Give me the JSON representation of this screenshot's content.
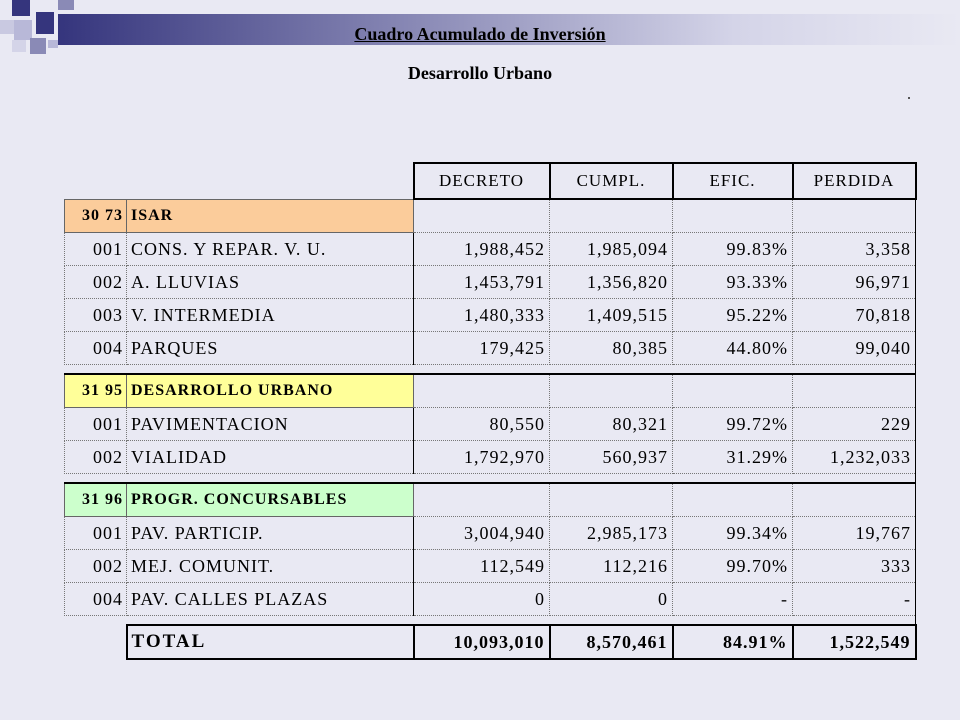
{
  "header": {
    "title": "Cuadro Acumulado de Inversión",
    "subtitle": "Desarrollo Urbano"
  },
  "columns": [
    "DECRETO",
    "CUMPL.",
    "EFIC.",
    "PERDIDA"
  ],
  "sections": [
    {
      "code": "30 73",
      "name": "ISAR",
      "color": "#fbcc9b",
      "rows": [
        {
          "code": "001",
          "name": "CONS. Y REPAR. V. U.",
          "decreto": "1,988,452",
          "cumpl": "1,985,094",
          "efic": "99.83%",
          "perdida": "3,358"
        },
        {
          "code": "002",
          "name": "A. LLUVIAS",
          "decreto": "1,453,791",
          "cumpl": "1,356,820",
          "efic": "93.33%",
          "perdida": "96,971"
        },
        {
          "code": "003",
          "name": "V. INTERMEDIA",
          "decreto": "1,480,333",
          "cumpl": "1,409,515",
          "efic": "95.22%",
          "perdida": "70,818"
        },
        {
          "code": "004",
          "name": "PARQUES",
          "decreto": "179,425",
          "cumpl": "80,385",
          "efic": "44.80%",
          "perdida": "99,040"
        }
      ]
    },
    {
      "code": "31 95",
      "name": "DESARROLLO URBANO",
      "color": "#ffff99",
      "rows": [
        {
          "code": "001",
          "name": "PAVIMENTACION",
          "decreto": "80,550",
          "cumpl": "80,321",
          "efic": "99.72%",
          "perdida": "229"
        },
        {
          "code": "002",
          "name": "VIALIDAD",
          "decreto": "1,792,970",
          "cumpl": "560,937",
          "efic": "31.29%",
          "perdida": "1,232,033"
        }
      ]
    },
    {
      "code": "31 96",
      "name": "PROGR. CONCURSABLES",
      "color": "#ccffcc",
      "rows": [
        {
          "code": "001",
          "name": "PAV. PARTICIP.",
          "decreto": "3,004,940",
          "cumpl": "2,985,173",
          "efic": "99.34%",
          "perdida": "19,767"
        },
        {
          "code": "002",
          "name": "MEJ. COMUNIT.",
          "decreto": "112,549",
          "cumpl": "112,216",
          "efic": "99.70%",
          "perdida": "333"
        },
        {
          "code": "004",
          "name": "PAV. CALLES PLAZAS",
          "decreto": "0",
          "cumpl": "0",
          "efic": "-",
          "perdida": "-"
        }
      ]
    }
  ],
  "total": {
    "label": "TOTAL",
    "decreto": "10,093,010",
    "cumpl": "8,570,461",
    "efic": "84.91%",
    "perdida": "1,522,549"
  },
  "theme": {
    "background": "#e9e9f3",
    "accent": "#35357d"
  }
}
